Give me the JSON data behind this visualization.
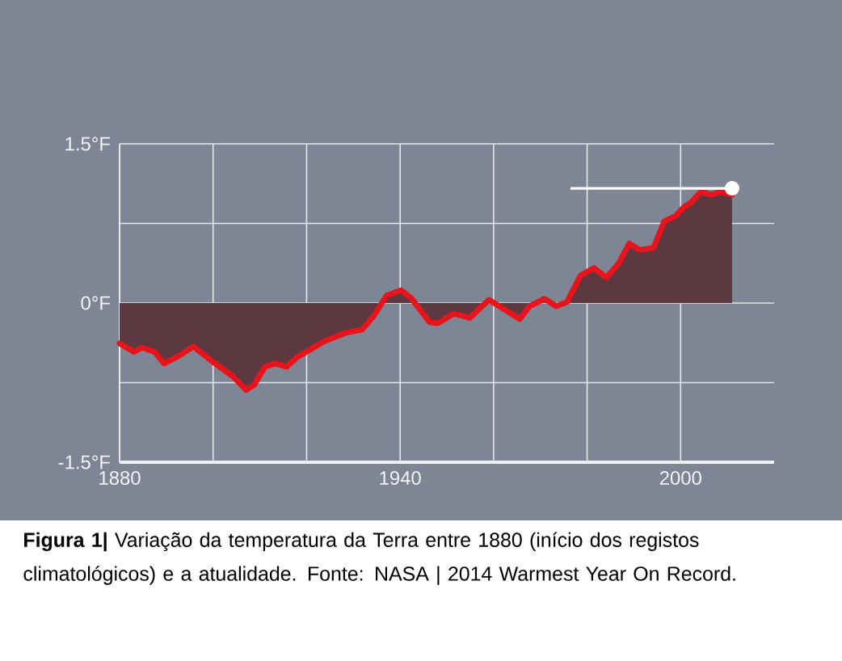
{
  "chart_data": {
    "type": "area",
    "color": "#e8141c",
    "x": [
      1880,
      1883.1,
      1884.8,
      1887.5,
      1889.5,
      1892.6,
      1895.8,
      1899.5,
      1904.2,
      1907.1,
      1908.8,
      1911.1,
      1913.4,
      1915.7,
      1918,
      1923.8,
      1928.4,
      1931.9,
      1934.2,
      1937.1,
      1940.2,
      1942.3,
      1946.3,
      1948,
      1951.5,
      1954.9,
      1959,
      1961.9,
      1965.6,
      1967.7,
      1970.9,
      1973.4,
      1975.7,
      1978.6,
      1981.5,
      1984.1,
      1986.7,
      1989,
      1991.3,
      1994.2,
      1996.5,
      1998.9,
      2000.6,
      2002.3,
      2004.4,
      2006.4,
      2008.7,
      2011
    ],
    "values": [
      -0.38,
      -0.46,
      -0.42,
      -0.46,
      -0.57,
      -0.5,
      -0.41,
      -0.54,
      -0.69,
      -0.82,
      -0.77,
      -0.6,
      -0.57,
      -0.6,
      -0.51,
      -0.36,
      -0.28,
      -0.25,
      -0.13,
      0.07,
      0.12,
      0.05,
      -0.18,
      -0.19,
      -0.1,
      -0.14,
      0.03,
      -0.05,
      -0.15,
      -0.03,
      0.04,
      -0.03,
      0.01,
      0.26,
      0.33,
      0.24,
      0.37,
      0.56,
      0.5,
      0.52,
      0.77,
      0.82,
      0.9,
      0.95,
      1.05,
      1.02,
      1.05,
      1.02
    ],
    "xlim": [
      1880,
      2020
    ],
    "xticks": [
      1880,
      {
        "value": 1900,
        "label": null
      },
      {
        "value": 1920,
        "label": null
      },
      1940,
      {
        "value": 1960,
        "label": null
      },
      {
        "value": 1980,
        "label": null
      },
      2000
    ],
    "ylim": [
      -1.5,
      1.5
    ],
    "yticks": [
      {
        "value": -1.5,
        "label": "-1.5°F"
      },
      {
        "value": -0.75,
        "label": null
      },
      {
        "value": 0,
        "label": "0°F"
      },
      {
        "value": 0.75,
        "label": null
      },
      {
        "value": 1.5,
        "label": "1.5°F"
      }
    ],
    "grid": true,
    "marker": "none",
    "line_style": "solid",
    "annotations": [
      "**Figura 1|** Variação da temperatura da Terra entre 1880 (início dos registos climatológicos)  e a atualidade.  Fonte: NASA | 2014 Warmest Year On Record."
    ]
  }
}
